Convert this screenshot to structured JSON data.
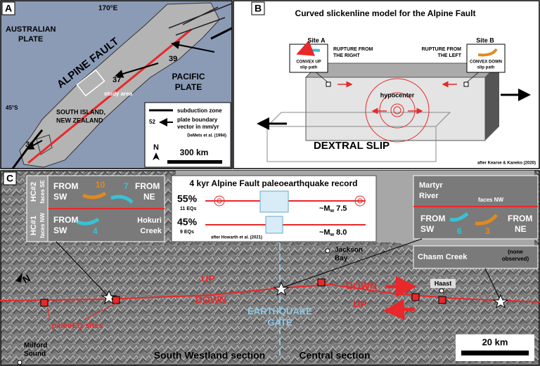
{
  "panel_a": {
    "label": "A",
    "longitude": "170°E",
    "latitude": "45°S",
    "australian_plate": [
      "AUSTRALIAN",
      "PLATE"
    ],
    "fault": "ALPINE FAULT",
    "pacific_plate": [
      "PACIFIC",
      "PLATE"
    ],
    "rates": [
      "39",
      "37",
      "34"
    ],
    "study_area": "study area",
    "island": [
      "SOUTH ISLAND,",
      "NEW ZEALAND"
    ],
    "legend": {
      "subduction": "subduction zone",
      "rate": "52",
      "vector": [
        "plate boundary",
        "vector in mm/yr"
      ],
      "source": "DeMets et al. (1994)"
    },
    "north": "N",
    "scale": "300 km"
  },
  "panel_b": {
    "label": "B",
    "title": "Curved slickenline model for the Alpine Fault",
    "site_a": {
      "name": "Site A",
      "rupture": [
        "RUPTURE FROM",
        "THE RIGHT"
      ],
      "path": [
        "CONVEX UP",
        "slip path"
      ]
    },
    "site_b": {
      "name": "Site B",
      "rupture": [
        "RUPTURE FROM",
        "THE LEFT"
      ],
      "path": [
        "CONVEX DOWN",
        "slip path"
      ]
    },
    "hypocenter": "hypocenter",
    "slip": "DEXTRAL SLIP",
    "source": "after Kearse & Kaneko (2020)"
  },
  "panel_c": {
    "label": "C",
    "hokuri": {
      "hc2": "HC#2",
      "hc2_faces": "faces SE",
      "hc1": "HC#1",
      "hc1_faces": "faces NW",
      "from_sw": [
        "FROM",
        "SW"
      ],
      "from_ne": [
        "FROM",
        "NE"
      ],
      "count_sw_hc2": "10",
      "count_ne_hc2": "7",
      "from_sw_hc1": [
        "FROM",
        "SW"
      ],
      "count_sw_hc1": "4",
      "name": [
        "Hokuri",
        "Creek"
      ]
    },
    "record": {
      "title": "4 kyr Alpine Fault paleoearthquake record",
      "rows": [
        {
          "percent": "55%",
          "count": "11 EQs",
          "magnitude": {
            "prefix": "~M",
            "sub": "w",
            "value": " 7.5"
          }
        },
        {
          "percent": "45%",
          "count": "9 EQs",
          "magnitude": {
            "prefix": "~M",
            "sub": "w",
            "value": " 8.0"
          }
        }
      ],
      "source": "after Howarth et al. (2021)"
    },
    "martyr": {
      "name": [
        "Martyr",
        "River"
      ],
      "faces": "faces NW",
      "from_sw": [
        "FROM",
        "SW"
      ],
      "count_sw": "6",
      "count_ne": "3",
      "from_ne": [
        "FROM",
        "NE"
      ]
    },
    "jackson": [
      "Jackson",
      "Bay"
    ],
    "chasm": {
      "name": "Chasm Creek",
      "note": [
        "(none",
        "observed)"
      ]
    },
    "north": "N",
    "up_left": "UP",
    "down_left": "DOWN",
    "down_right": "DOWN",
    "up_right": "UP",
    "haast": "Haast",
    "gate": [
      "EARTHQUAKE",
      "GATE"
    ],
    "sites": "paleoEQ sites",
    "milford": [
      "Milford",
      "Sound"
    ],
    "south_westland": "South Westland section",
    "central": "Central section",
    "scale": "20 km"
  }
}
